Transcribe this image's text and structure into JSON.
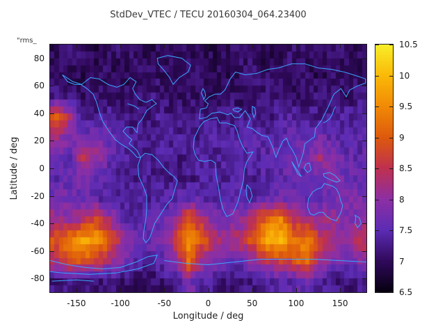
{
  "title": "StdDev_VTEC / TECU 20160304_064.23400",
  "corner_label": "\"rms_",
  "axes": {
    "x_label": "Longitude / deg",
    "y_label": "Latitude / deg",
    "x_ticks": [
      -150,
      -100,
      -50,
      0,
      50,
      100,
      150
    ],
    "y_ticks": [
      80,
      60,
      40,
      20,
      0,
      -20,
      -40,
      -60,
      -80
    ],
    "x_range": [
      -180,
      180
    ],
    "y_range": [
      -90,
      90
    ]
  },
  "colorbar": {
    "min": 6.5,
    "max": 10.5,
    "ticks": [
      6.5,
      7,
      7.5,
      8,
      8.5,
      9,
      9.5,
      10,
      10.5
    ],
    "stops": [
      [
        0.0,
        "#060010"
      ],
      [
        0.125,
        "#30095c"
      ],
      [
        0.25,
        "#5c2cb4"
      ],
      [
        0.375,
        "#8d2fa4"
      ],
      [
        0.5,
        "#bf3050"
      ],
      [
        0.625,
        "#dd5a0d"
      ],
      [
        0.75,
        "#f18a05"
      ],
      [
        0.875,
        "#fab908"
      ],
      [
        1.0,
        "#f8ee28"
      ]
    ]
  },
  "map": {
    "coastline_color": "#3aa7ff"
  },
  "chart_data": {
    "type": "heatmap",
    "title": "StdDev_VTEC / TECU 20160304_064.23400",
    "xlabel": "Longitude / deg",
    "ylabel": "Latitude / deg",
    "x_range": [
      -180,
      180
    ],
    "y_range": [
      -90,
      90
    ],
    "value_label": "StdDev VTEC / TECU",
    "value_range": [
      6.5,
      10.5
    ],
    "legend": "colorbar-right",
    "grid": false,
    "lon_centers": [
      -172.5,
      -157.5,
      -142.5,
      -127.5,
      -112.5,
      -97.5,
      -82.5,
      -67.5,
      -52.5,
      -37.5,
      -22.5,
      -7.5,
      7.5,
      22.5,
      37.5,
      52.5,
      67.5,
      82.5,
      97.5,
      112.5,
      127.5,
      142.5,
      157.5,
      172.5
    ],
    "lat_centers": [
      82.5,
      67.5,
      52.5,
      37.5,
      22.5,
      7.5,
      -7.5,
      -22.5,
      -37.5,
      -52.5,
      -67.5,
      -82.5
    ],
    "values": [
      [
        7.0,
        7.1,
        7.0,
        6.9,
        7.0,
        7.1,
        7.0,
        6.9,
        7.0,
        7.1,
        7.0,
        7.0,
        6.9,
        7.0,
        7.1,
        7.0,
        6.9,
        7.0,
        7.1,
        7.0,
        7.0,
        7.1,
        7.0,
        7.0
      ],
      [
        7.1,
        7.0,
        6.9,
        7.0,
        7.0,
        6.9,
        7.0,
        7.1,
        7.0,
        6.9,
        7.0,
        7.1,
        7.0,
        6.9,
        7.0,
        7.1,
        7.0,
        7.0,
        7.1,
        7.0,
        6.9,
        7.0,
        7.1,
        7.0
      ],
      [
        7.2,
        7.1,
        7.0,
        7.1,
        7.0,
        7.0,
        7.1,
        7.2,
        7.1,
        7.0,
        7.1,
        7.0,
        7.0,
        7.1,
        7.0,
        7.1,
        7.2,
        7.1,
        7.0,
        7.1,
        7.2,
        7.1,
        7.0,
        7.2
      ],
      [
        9.1,
        8.2,
        7.4,
        7.3,
        7.4,
        7.2,
        7.1,
        7.2,
        7.3,
        7.2,
        7.1,
        7.2,
        7.3,
        7.2,
        7.2,
        7.3,
        7.2,
        7.3,
        7.4,
        7.3,
        7.2,
        7.3,
        7.4,
        7.3
      ],
      [
        8.2,
        7.8,
        7.6,
        7.9,
        7.7,
        7.4,
        7.3,
        7.2,
        7.4,
        7.3,
        7.2,
        7.3,
        7.4,
        7.3,
        7.4,
        7.5,
        7.4,
        7.5,
        7.6,
        7.5,
        7.7,
        7.5,
        7.4,
        7.5
      ],
      [
        7.6,
        7.5,
        8.5,
        8.1,
        7.6,
        7.4,
        7.3,
        7.2,
        7.3,
        7.2,
        7.3,
        7.4,
        7.3,
        7.4,
        7.5,
        7.4,
        7.5,
        7.6,
        7.7,
        7.8,
        8.2,
        7.8,
        7.6,
        7.5
      ],
      [
        7.5,
        7.6,
        7.8,
        7.6,
        7.4,
        7.3,
        7.2,
        7.3,
        7.2,
        7.3,
        7.2,
        7.3,
        7.4,
        7.3,
        7.4,
        7.3,
        7.4,
        7.5,
        7.6,
        7.5,
        7.7,
        7.8,
        7.7,
        7.6
      ],
      [
        7.8,
        7.7,
        7.6,
        7.5,
        7.4,
        7.3,
        7.4,
        7.3,
        7.4,
        7.5,
        7.6,
        7.5,
        7.4,
        7.5,
        7.4,
        7.5,
        7.6,
        7.7,
        7.6,
        7.5,
        7.6,
        7.7,
        7.9,
        7.8
      ],
      [
        8.2,
        8.0,
        8.4,
        8.8,
        8.2,
        7.6,
        7.4,
        7.5,
        7.6,
        8.0,
        9.0,
        8.4,
        7.8,
        7.8,
        8.0,
        8.6,
        9.2,
        9.4,
        8.6,
        8.2,
        8.0,
        8.2,
        7.8,
        8.0
      ],
      [
        9.0,
        9.4,
        9.8,
        9.6,
        9.0,
        8.2,
        7.8,
        7.6,
        7.8,
        8.6,
        9.6,
        9.0,
        8.4,
        8.2,
        8.4,
        9.0,
        9.8,
        10.0,
        9.2,
        9.4,
        8.6,
        8.2,
        8.0,
        8.4
      ],
      [
        8.4,
        8.8,
        9.0,
        8.6,
        8.2,
        7.8,
        7.5,
        7.4,
        7.5,
        7.8,
        9.2,
        8.2,
        7.8,
        7.6,
        7.7,
        8.0,
        8.4,
        8.6,
        8.8,
        9.4,
        8.2,
        7.8,
        7.6,
        7.9
      ],
      [
        7.2,
        7.3,
        7.2,
        7.1,
        7.2,
        7.1,
        7.0,
        7.0,
        7.1,
        7.2,
        7.8,
        7.4,
        7.2,
        7.1,
        7.2,
        7.2,
        7.3,
        7.4,
        7.5,
        7.6,
        7.3,
        7.2,
        7.1,
        7.2
      ]
    ]
  }
}
